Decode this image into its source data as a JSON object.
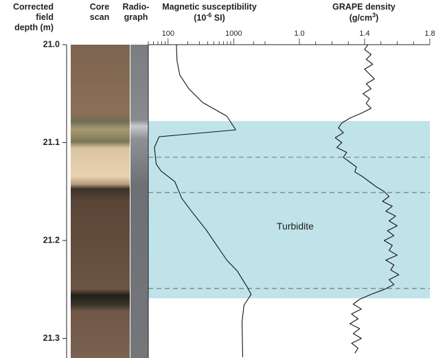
{
  "chart_data": {
    "type": "core-log",
    "depth_label": [
      "Corrected",
      "field",
      "depth (m)"
    ],
    "core_scan_label": [
      "Core",
      "scan"
    ],
    "radiograph_label": [
      "Radio-",
      "graph"
    ],
    "ylim": [
      21.0,
      21.32
    ],
    "yticks": [
      {
        "value": 21.0,
        "label": "21.0"
      },
      21.1,
      21.2,
      21.3
    ],
    "tracks": [
      {
        "name": "Magnetic susceptibility",
        "unit_prefix": "(10",
        "unit_exponent": "-6",
        "unit_suffix": " SI)",
        "scale": "log",
        "xlim": [
          50,
          10000
        ],
        "xticks": [
          100,
          1000
        ],
        "minor_ticks": [
          50,
          60,
          70,
          80,
          90,
          200,
          300,
          400,
          500,
          600,
          700,
          800,
          900,
          2000,
          3000
        ],
        "color": "#111111",
        "depth": [
          21.0,
          21.017,
          21.031,
          21.045,
          21.059,
          21.073,
          21.087,
          21.094,
          21.105,
          21.122,
          21.129,
          21.14,
          21.157,
          21.171,
          21.189,
          21.22,
          21.231,
          21.248,
          21.255,
          21.266,
          21.283,
          21.319
        ],
        "values": [
          134,
          137,
          151,
          207,
          336,
          785,
          1075,
          73,
          62,
          66,
          78,
          127,
          162,
          233,
          379,
          785,
          1127,
          1622,
          1838,
          1435,
          1340,
          1370
        ]
      },
      {
        "name": "GRAPE density",
        "unit_prefix": "(g/cm",
        "unit_exponent": "3",
        "unit_suffix": ")",
        "scale": "linear",
        "xlim": [
          1.0,
          1.8
        ],
        "xticks": [
          {
            "value": 1.0,
            "label": "1.0"
          },
          1.4,
          1.8
        ],
        "minor_ticks": [
          1.1,
          1.2,
          1.3,
          1.5,
          1.6,
          1.7
        ],
        "color": "#111111",
        "depth": [
          21.0,
          21.005,
          21.01,
          21.015,
          21.02,
          21.025,
          21.03,
          21.035,
          21.04,
          21.045,
          21.05,
          21.055,
          21.06,
          21.065,
          21.07,
          21.075,
          21.08,
          21.085,
          21.09,
          21.095,
          21.1,
          21.105,
          21.11,
          21.115,
          21.12,
          21.125,
          21.13,
          21.135,
          21.14,
          21.145,
          21.15,
          21.155,
          21.16,
          21.165,
          21.17,
          21.175,
          21.18,
          21.185,
          21.19,
          21.195,
          21.2,
          21.205,
          21.21,
          21.215,
          21.22,
          21.225,
          21.23,
          21.235,
          21.24,
          21.245,
          21.25,
          21.255,
          21.26,
          21.265,
          21.27,
          21.275,
          21.28,
          21.285,
          21.29,
          21.295,
          21.3,
          21.305,
          21.31,
          21.315
        ],
        "values": [
          1.42,
          1.4,
          1.44,
          1.41,
          1.45,
          1.4,
          1.43,
          1.46,
          1.41,
          1.44,
          1.39,
          1.43,
          1.41,
          1.44,
          1.38,
          1.31,
          1.26,
          1.24,
          1.27,
          1.22,
          1.26,
          1.23,
          1.29,
          1.27,
          1.31,
          1.35,
          1.34,
          1.39,
          1.43,
          1.47,
          1.52,
          1.55,
          1.51,
          1.57,
          1.53,
          1.59,
          1.55,
          1.6,
          1.54,
          1.58,
          1.52,
          1.57,
          1.55,
          1.6,
          1.53,
          1.58,
          1.56,
          1.61,
          1.55,
          1.58,
          1.52,
          1.44,
          1.37,
          1.33,
          1.38,
          1.32,
          1.36,
          1.31,
          1.37,
          1.33,
          1.38,
          1.32,
          1.36,
          1.34
        ]
      }
    ],
    "annotation": {
      "text": "Turbidite",
      "range": [
        21.078,
        21.259
      ],
      "color": "#bfe3e8"
    },
    "dashed_lines": [
      21.115,
      21.151,
      21.249
    ]
  }
}
